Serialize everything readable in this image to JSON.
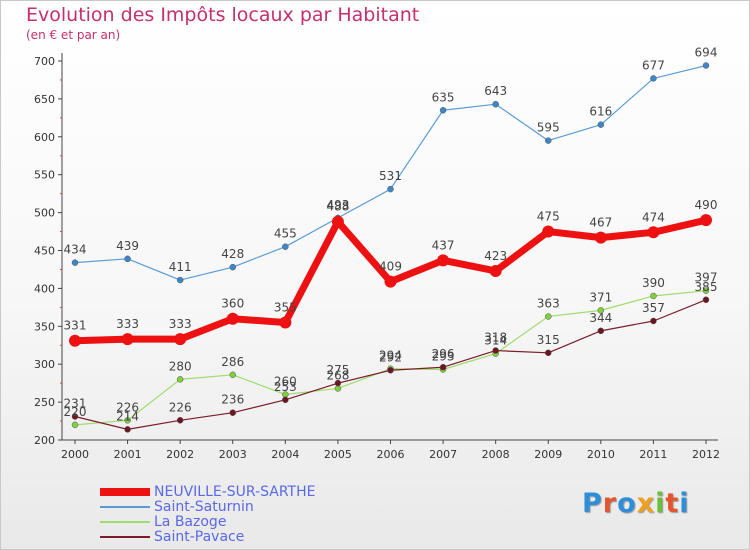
{
  "header": {
    "title": "Evolution des Impôts locaux par Habitant",
    "subtitle": "(en € et par an)"
  },
  "logo": {
    "text": "Proxiti",
    "letter_colors": [
      "#2f8ed8",
      "#e4572e",
      "#2f8ed8",
      "#f0a020",
      "#6dbf3a",
      "#e4572e",
      "#2f8ed8"
    ]
  },
  "chart_data": {
    "type": "line",
    "title": "Evolution des Impôts locaux par Habitant",
    "subtitle": "(en € et par an)",
    "x": [
      "2000",
      "2001",
      "2002",
      "2003",
      "2004",
      "2005",
      "2006",
      "2007",
      "2008",
      "2009",
      "2010",
      "2011",
      "2012"
    ],
    "ylim": [
      200,
      700
    ],
    "yticks": [
      200,
      250,
      300,
      350,
      400,
      450,
      500,
      550,
      600,
      650,
      700
    ],
    "grid": false,
    "legend_position": "bottom-left",
    "series": [
      {
        "name": "NEUVILLE-SUR-SARTHE",
        "color": "#ee1111",
        "values": [
          331,
          333,
          333,
          360,
          355,
          488,
          409,
          437,
          423,
          475,
          467,
          474,
          490
        ]
      },
      {
        "name": "Saint-Saturnin",
        "color": "#5b9bd5",
        "values": [
          434,
          439,
          411,
          428,
          455,
          493,
          531,
          635,
          643,
          595,
          616,
          677,
          694
        ]
      },
      {
        "name": "La Bazoge",
        "color": "#9edc6e",
        "values": [
          220,
          226,
          280,
          286,
          260,
          268,
          294,
          293,
          314,
          363,
          371,
          390,
          397
        ]
      },
      {
        "name": "Saint-Pavace",
        "color": "#7a1c2a",
        "values": [
          231,
          214,
          226,
          236,
          253,
          275,
          292,
          296,
          318,
          315,
          344,
          357,
          385
        ]
      }
    ]
  }
}
